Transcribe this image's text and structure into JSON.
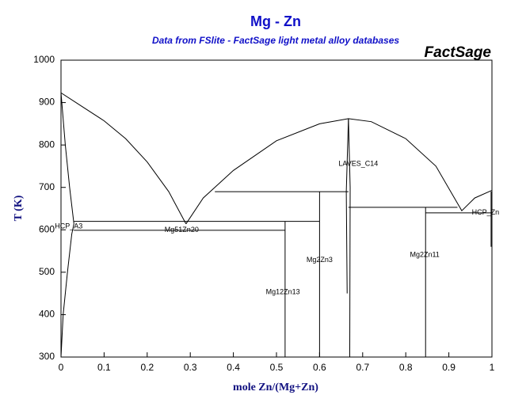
{
  "chart_data": {
    "type": "phase-diagram",
    "title": "Mg - Zn",
    "subtitle": "Data from FSlite - FactSage light metal alloy databases",
    "logo": "FactSage",
    "x_label": "mole Zn/(Mg+Zn)",
    "y_label": "T (K)",
    "xlim": [
      0,
      1
    ],
    "ylim": [
      300,
      1000
    ],
    "xticks": [
      0,
      0.1,
      0.2,
      0.3,
      0.4,
      0.5,
      0.6,
      0.7,
      0.8,
      0.9,
      1
    ],
    "yticks": [
      300,
      400,
      500,
      600,
      700,
      800,
      900,
      1000
    ],
    "color": "#000000",
    "lines": [
      {
        "x": [
          0,
          0.05,
          0.1,
          0.15,
          0.2,
          0.25,
          0.29
        ],
        "y": [
          923,
          890,
          857,
          815,
          760,
          690,
          614
        ]
      },
      {
        "x": [
          0.29,
          0.33,
          0.4,
          0.5,
          0.6,
          0.667,
          0.72,
          0.8,
          0.87,
          0.93,
          0.96,
          1
        ],
        "y": [
          614,
          675,
          740,
          810,
          850,
          862,
          855,
          815,
          750,
          645,
          675,
          693
        ]
      },
      {
        "x": [
          0,
          0.01,
          0.02,
          0.03
        ],
        "y": [
          923,
          800,
          700,
          614
        ]
      },
      {
        "x": [
          0.03,
          0.025,
          0.015,
          0.005,
          0
        ],
        "y": [
          614,
          590,
          500,
          400,
          300
        ]
      },
      {
        "x": [
          0.03,
          0.6
        ],
        "y": [
          620,
          620
        ]
      },
      {
        "x": [
          0.03,
          0.52
        ],
        "y": [
          599,
          599
        ]
      },
      {
        "x": [
          0.52,
          0.52
        ],
        "y": [
          300,
          620
        ]
      },
      {
        "x": [
          0.6,
          0.6
        ],
        "y": [
          300,
          690
        ]
      },
      {
        "x": [
          0.357,
          0.667
        ],
        "y": [
          690,
          690
        ]
      },
      {
        "x": [
          0.667,
          0.662,
          0.664
        ],
        "y": [
          862,
          690,
          450
        ]
      },
      {
        "x": [
          0.667,
          0.671,
          0.67
        ],
        "y": [
          862,
          700,
          300
        ]
      },
      {
        "x": [
          0.667,
          0.92
        ],
        "y": [
          653,
          653
        ]
      },
      {
        "x": [
          0.846,
          0.846
        ],
        "y": [
          300,
          653
        ]
      },
      {
        "x": [
          0.846,
          1
        ],
        "y": [
          640,
          640
        ]
      },
      {
        "x": [
          0.998,
          0.998
        ],
        "y": [
          560,
          690
        ]
      }
    ],
    "annotations": [
      {
        "text": "HCP_A3",
        "x": 0.018,
        "y": 608
      },
      {
        "text": "Mg51Zn20",
        "x": 0.28,
        "y": 599
      },
      {
        "text": "LAVES_C14",
        "x": 0.69,
        "y": 755
      },
      {
        "text": "Mg2Zn3",
        "x": 0.6,
        "y": 528
      },
      {
        "text": "Mg12Zn13",
        "x": 0.515,
        "y": 453
      },
      {
        "text": "Mg2Zn11",
        "x": 0.844,
        "y": 541
      },
      {
        "text": "HCP_Zn",
        "x": 0.985,
        "y": 640
      }
    ]
  }
}
